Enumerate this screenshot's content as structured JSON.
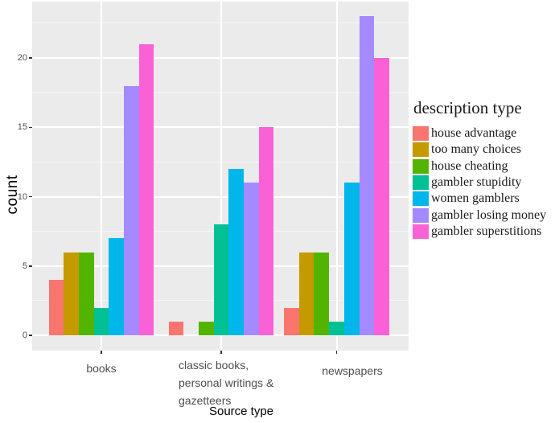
{
  "chart_data": {
    "type": "bar",
    "grouping": "dodged",
    "xlabel": "Source type",
    "ylabel": "count",
    "legend_title": "description type",
    "legend_position": "right",
    "panel_background": "#EBEBEB",
    "gridline_color": "#FFFFFF",
    "grid": "on",
    "yticks": [
      0,
      5,
      10,
      15,
      20
    ],
    "ylim": [
      -1.15,
      24.15
    ],
    "categories": [
      {
        "label": "books",
        "lines": [
          "books"
        ]
      },
      {
        "label": "classic books, personal writings & gazetteers",
        "lines": [
          "classic books,",
          "personal writings &",
          "gazetteers"
        ]
      },
      {
        "label": "newspapers",
        "lines": [
          "newspapers"
        ]
      }
    ],
    "series": [
      {
        "name": "house advantage",
        "color": "#F8766D",
        "values": [
          4,
          1,
          2
        ]
      },
      {
        "name": "too many choices",
        "color": "#C49A00",
        "values": [
          6,
          0,
          6
        ]
      },
      {
        "name": "house cheating",
        "color": "#53B400",
        "values": [
          6,
          1,
          6
        ]
      },
      {
        "name": "gambler stupidity",
        "color": "#00C094",
        "values": [
          2,
          8,
          1
        ]
      },
      {
        "name": "women gamblers",
        "color": "#00B6EB",
        "values": [
          7,
          12,
          11
        ]
      },
      {
        "name": "gambler losing money",
        "color": "#A58AFF",
        "values": [
          18,
          11,
          23
        ]
      },
      {
        "name": "gambler superstitions",
        "color": "#FB61D7",
        "values": [
          21,
          15,
          20
        ]
      }
    ]
  }
}
